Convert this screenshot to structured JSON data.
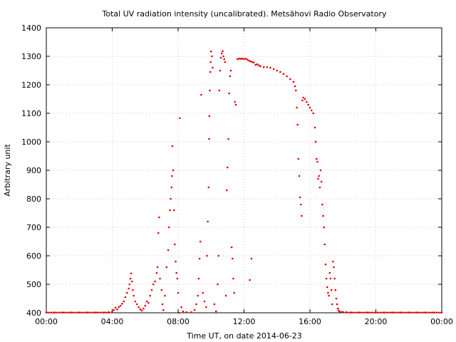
{
  "chart_data": {
    "type": "scatter",
    "title": "Total UV radiation intensity (uncalibrated). Metsähovi Radio Observatory",
    "xlabel": "Time UT, on date 2014-06-23",
    "ylabel": "Arbitrary unit",
    "x_unit": "hours UT",
    "xlim": [
      0,
      24
    ],
    "ylim": [
      400,
      1400
    ],
    "x_ticks": [
      0,
      4,
      8,
      12,
      16,
      20,
      24
    ],
    "x_tick_labels": [
      "00:00",
      "04:00",
      "08:00",
      "12:00",
      "16:00",
      "20:00",
      "00:00"
    ],
    "y_ticks": [
      400,
      500,
      600,
      700,
      800,
      900,
      1000,
      1100,
      1200,
      1300,
      1400
    ],
    "y_tick_labels": [
      "400",
      "500",
      "600",
      "700",
      "800",
      "900",
      "1000",
      "1100",
      "1200",
      "1300",
      "1400"
    ],
    "grid": true,
    "marker_color": "#e00000",
    "series": [
      {
        "points": [
          [
            0.0,
            401
          ],
          [
            0.5,
            401
          ],
          [
            1.0,
            401
          ],
          [
            1.5,
            401
          ],
          [
            2.0,
            401
          ],
          [
            2.5,
            401
          ],
          [
            3.0,
            401
          ],
          [
            3.5,
            401
          ],
          [
            3.8,
            402
          ],
          [
            4.0,
            405
          ],
          [
            4.1,
            410
          ],
          [
            4.2,
            418
          ],
          [
            4.3,
            412
          ],
          [
            4.4,
            420
          ],
          [
            4.5,
            425
          ],
          [
            4.6,
            432
          ],
          [
            4.7,
            440
          ],
          [
            4.8,
            455
          ],
          [
            4.9,
            470
          ],
          [
            5.0,
            485
          ],
          [
            5.05,
            500
          ],
          [
            5.1,
            520
          ],
          [
            5.15,
            538
          ],
          [
            5.2,
            510
          ],
          [
            5.25,
            480
          ],
          [
            5.3,
            460
          ],
          [
            5.4,
            440
          ],
          [
            5.5,
            430
          ],
          [
            5.6,
            420
          ],
          [
            5.7,
            412
          ],
          [
            5.8,
            408
          ],
          [
            5.9,
            415
          ],
          [
            6.0,
            425
          ],
          [
            6.1,
            440
          ],
          [
            6.2,
            435
          ],
          [
            6.3,
            460
          ],
          [
            6.4,
            480
          ],
          [
            6.5,
            500
          ],
          [
            6.6,
            510
          ],
          [
            6.7,
            540
          ],
          [
            6.75,
            560
          ],
          [
            6.8,
            680
          ],
          [
            6.85,
            735
          ],
          [
            6.9,
            520
          ],
          [
            7.0,
            480
          ],
          [
            7.05,
            430
          ],
          [
            7.1,
            410
          ],
          [
            7.2,
            460
          ],
          [
            7.3,
            560
          ],
          [
            7.4,
            620
          ],
          [
            7.45,
            700
          ],
          [
            7.5,
            760
          ],
          [
            7.55,
            800
          ],
          [
            7.6,
            840
          ],
          [
            7.62,
            880
          ],
          [
            7.65,
            985
          ],
          [
            7.7,
            900
          ],
          [
            7.75,
            760
          ],
          [
            7.8,
            640
          ],
          [
            7.85,
            580
          ],
          [
            7.9,
            540
          ],
          [
            7.95,
            520
          ],
          [
            8.0,
            470
          ],
          [
            8.05,
            400
          ],
          [
            8.1,
            1083
          ],
          [
            8.2,
            420
          ],
          [
            8.3,
            405
          ],
          [
            8.5,
            402
          ],
          [
            8.8,
            402
          ],
          [
            9.0,
            410
          ],
          [
            9.1,
            430
          ],
          [
            9.2,
            460
          ],
          [
            9.25,
            520
          ],
          [
            9.3,
            590
          ],
          [
            9.35,
            650
          ],
          [
            9.4,
            1165
          ],
          [
            9.5,
            470
          ],
          [
            9.6,
            440
          ],
          [
            9.7,
            420
          ],
          [
            9.75,
            600
          ],
          [
            9.8,
            720
          ],
          [
            9.85,
            840
          ],
          [
            9.88,
            1010
          ],
          [
            9.9,
            1090
          ],
          [
            9.92,
            1180
          ],
          [
            9.95,
            1245
          ],
          [
            9.98,
            1280
          ],
          [
            10.0,
            1317
          ],
          [
            10.05,
            1300
          ],
          [
            10.1,
            1260
          ],
          [
            10.2,
            430
          ],
          [
            10.3,
            405
          ],
          [
            10.4,
            500
          ],
          [
            10.45,
            600
          ],
          [
            10.5,
            1180
          ],
          [
            10.55,
            1250
          ],
          [
            10.6,
            1295
          ],
          [
            10.65,
            1310
          ],
          [
            10.7,
            1318
          ],
          [
            10.75,
            1300
          ],
          [
            10.8,
            1290
          ],
          [
            10.85,
            1280
          ],
          [
            10.9,
            460
          ],
          [
            10.95,
            830
          ],
          [
            11.0,
            910
          ],
          [
            11.05,
            1010
          ],
          [
            11.1,
            1170
          ],
          [
            11.15,
            1230
          ],
          [
            11.2,
            1250
          ],
          [
            11.25,
            630
          ],
          [
            11.3,
            590
          ],
          [
            11.35,
            520
          ],
          [
            11.4,
            470
          ],
          [
            11.45,
            1140
          ],
          [
            11.5,
            1130
          ],
          [
            11.6,
            1290
          ],
          [
            11.7,
            1292
          ],
          [
            11.8,
            1291
          ],
          [
            11.9,
            1292
          ],
          [
            12.0,
            1290
          ],
          [
            12.1,
            1292
          ],
          [
            12.2,
            1288
          ],
          [
            12.3,
            1285
          ],
          [
            12.35,
            515
          ],
          [
            12.4,
            1282
          ],
          [
            12.45,
            590
          ],
          [
            12.5,
            1280
          ],
          [
            12.6,
            1278
          ],
          [
            12.7,
            1270
          ],
          [
            12.8,
            1272
          ],
          [
            12.9,
            1268
          ],
          [
            13.0,
            1265
          ],
          [
            13.2,
            1262
          ],
          [
            13.4,
            1262
          ],
          [
            13.6,
            1260
          ],
          [
            13.8,
            1255
          ],
          [
            14.0,
            1250
          ],
          [
            14.2,
            1245
          ],
          [
            14.4,
            1238
          ],
          [
            14.6,
            1230
          ],
          [
            14.8,
            1220
          ],
          [
            15.0,
            1210
          ],
          [
            15.1,
            1195
          ],
          [
            15.15,
            1180
          ],
          [
            15.2,
            1120
          ],
          [
            15.25,
            1060
          ],
          [
            15.3,
            940
          ],
          [
            15.35,
            880
          ],
          [
            15.4,
            805
          ],
          [
            15.45,
            780
          ],
          [
            15.5,
            740
          ],
          [
            15.55,
            1145
          ],
          [
            15.6,
            1155
          ],
          [
            15.7,
            1150
          ],
          [
            15.8,
            1140
          ],
          [
            15.9,
            1130
          ],
          [
            16.0,
            1120
          ],
          [
            16.1,
            1110
          ],
          [
            16.2,
            1100
          ],
          [
            16.3,
            1050
          ],
          [
            16.35,
            1000
          ],
          [
            16.4,
            940
          ],
          [
            16.45,
            930
          ],
          [
            16.5,
            870
          ],
          [
            16.55,
            880
          ],
          [
            16.6,
            840
          ],
          [
            16.65,
            900
          ],
          [
            16.7,
            860
          ],
          [
            16.75,
            780
          ],
          [
            16.8,
            740
          ],
          [
            16.85,
            700
          ],
          [
            16.9,
            640
          ],
          [
            16.95,
            570
          ],
          [
            17.0,
            520
          ],
          [
            17.05,
            490
          ],
          [
            17.1,
            470
          ],
          [
            17.15,
            460
          ],
          [
            17.2,
            540
          ],
          [
            17.25,
            520
          ],
          [
            17.3,
            480
          ],
          [
            17.35,
            430
          ],
          [
            17.4,
            580
          ],
          [
            17.45,
            560
          ],
          [
            17.5,
            520
          ],
          [
            17.55,
            480
          ],
          [
            17.6,
            450
          ],
          [
            17.65,
            430
          ],
          [
            17.7,
            415
          ],
          [
            17.75,
            408
          ],
          [
            17.8,
            404
          ],
          [
            17.9,
            402
          ],
          [
            18.0,
            403
          ],
          [
            18.2,
            402
          ],
          [
            18.5,
            401
          ],
          [
            19.0,
            401
          ],
          [
            19.5,
            401
          ],
          [
            20.0,
            401
          ],
          [
            20.5,
            401
          ],
          [
            21.0,
            401
          ],
          [
            21.5,
            401
          ],
          [
            22.0,
            401
          ],
          [
            22.5,
            401
          ],
          [
            23.0,
            401
          ],
          [
            23.5,
            401
          ],
          [
            24.0,
            401
          ]
        ]
      }
    ]
  }
}
